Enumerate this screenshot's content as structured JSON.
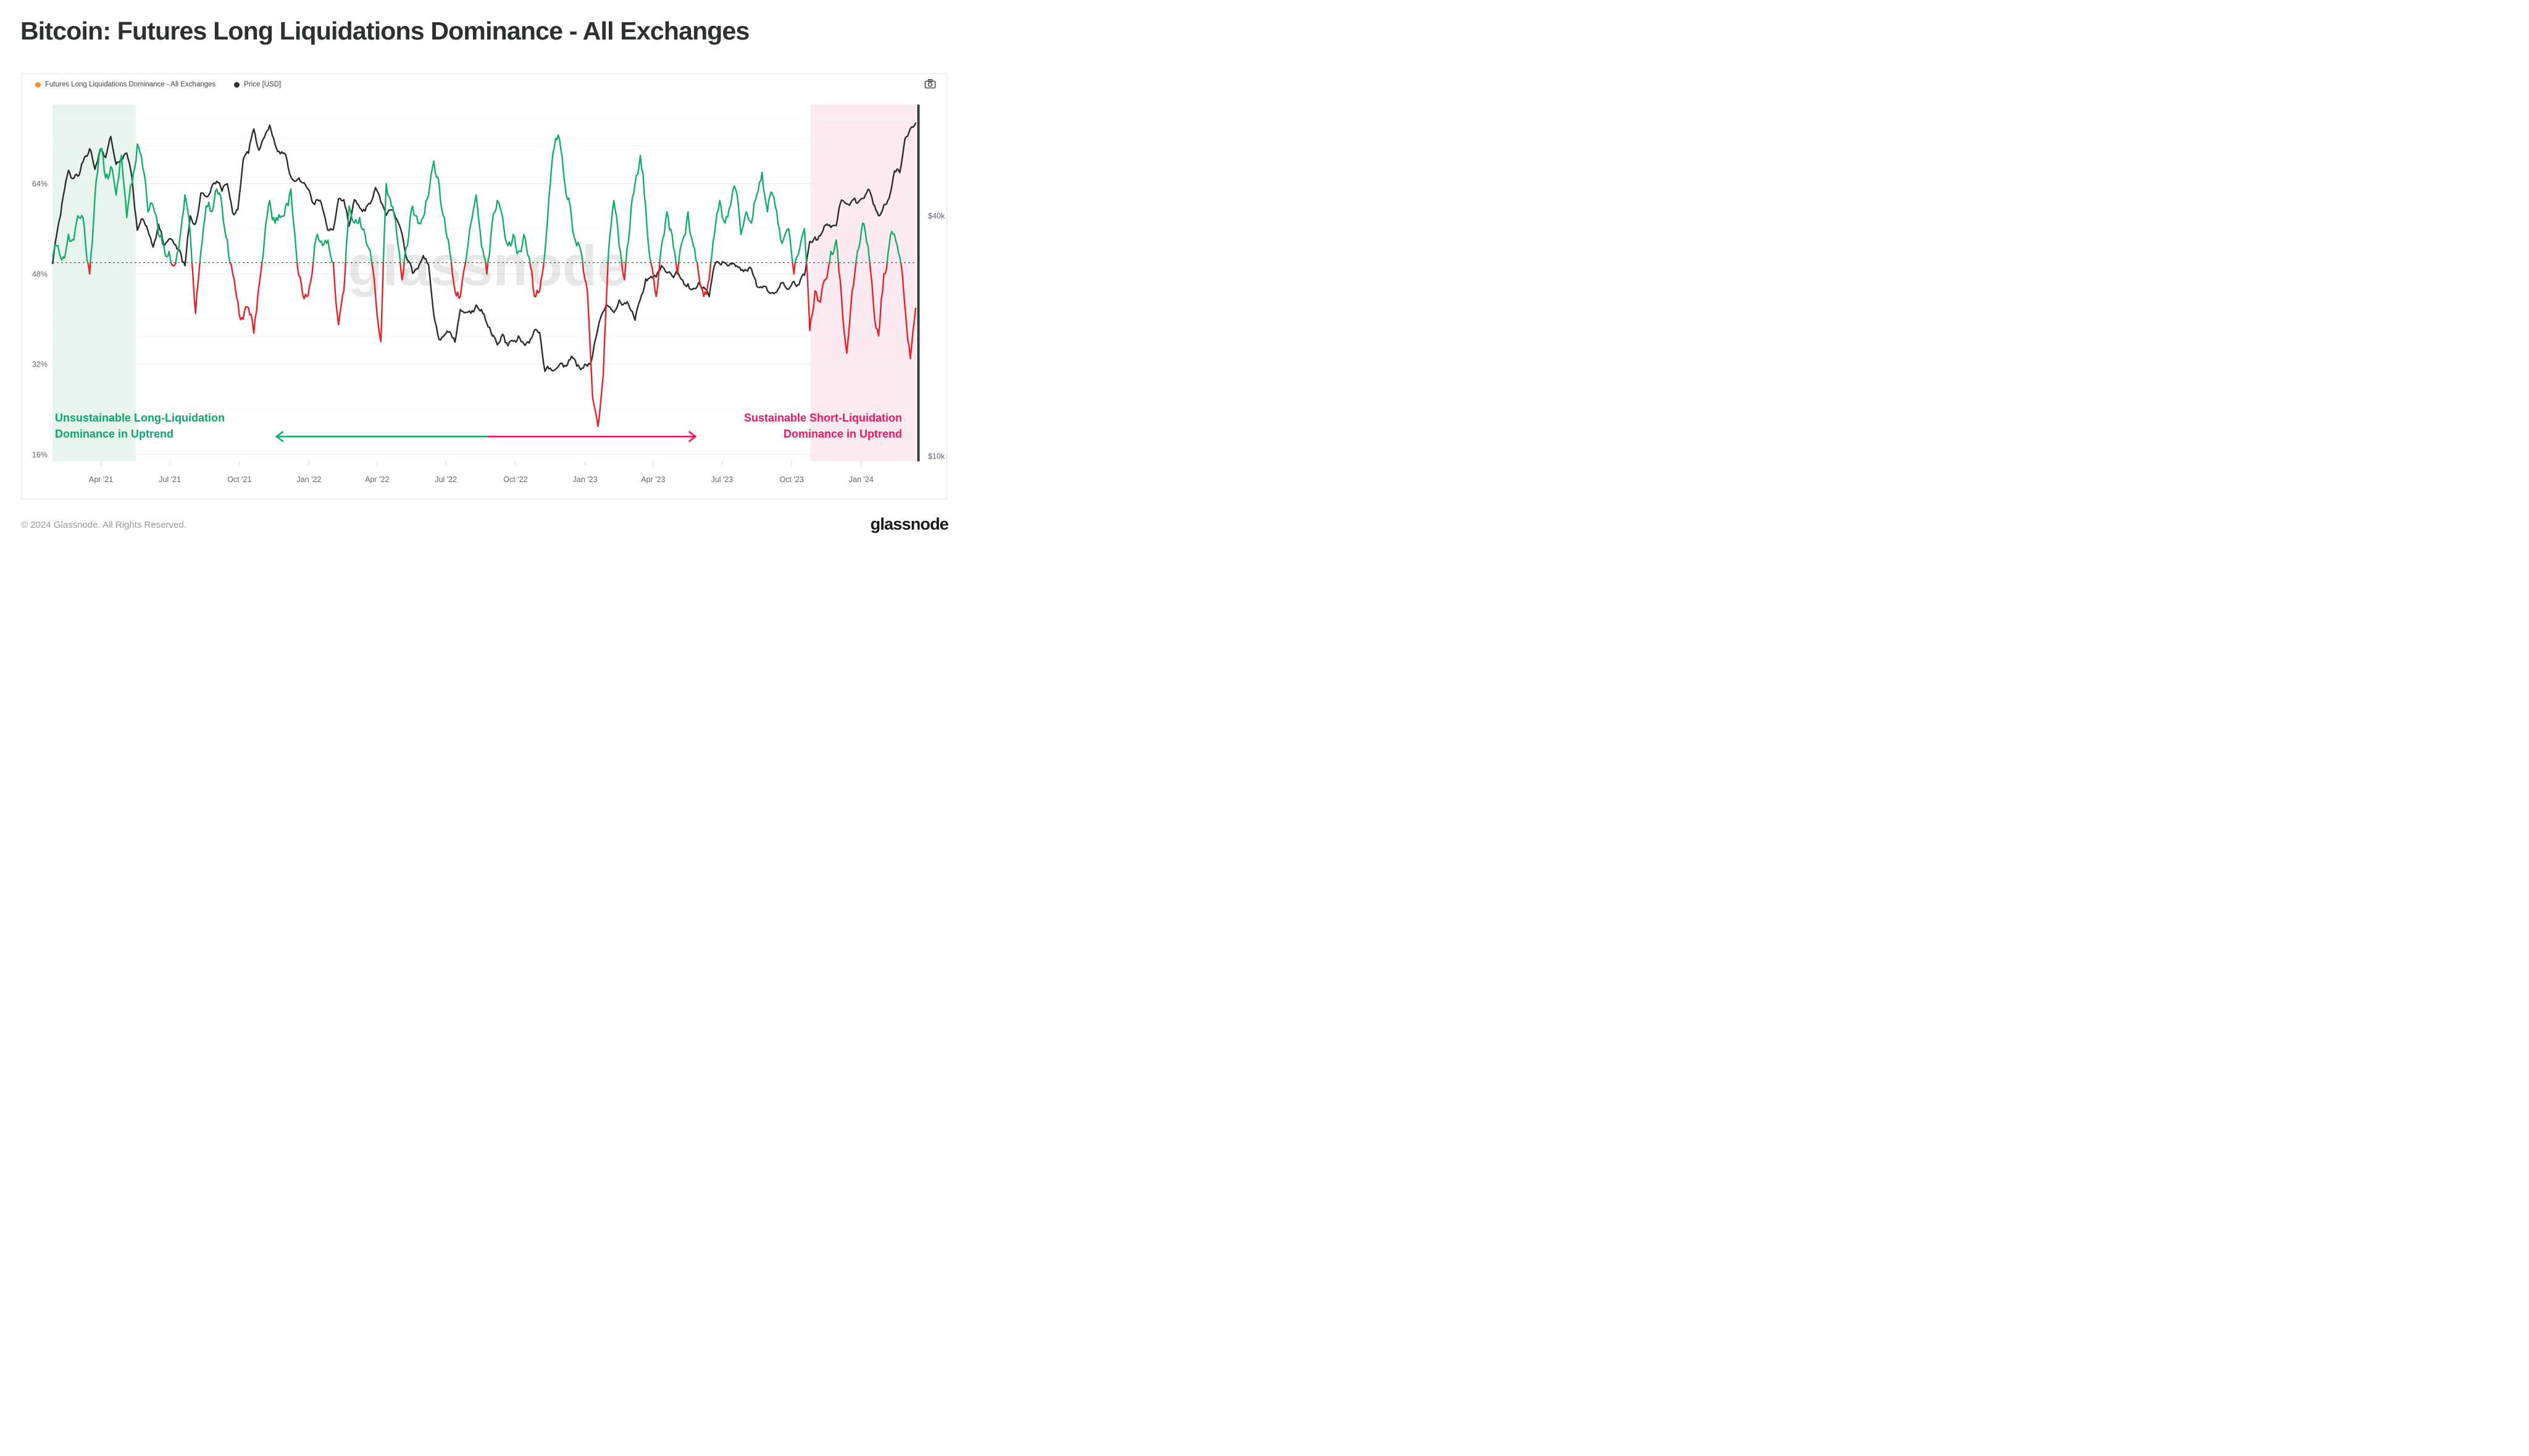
{
  "title": "Bitcoin: Futures Long Liquidations Dominance - All Exchanges",
  "chart": {
    "legend": [
      {
        "label": "Futures Long Liquidations Dominance - All Exchanges",
        "dot_color": "#f7931a"
      },
      {
        "label": "Price [USD]",
        "dot_color": "#333333"
      }
    ],
    "camera_icon": "camera-icon",
    "annotations": {
      "left": {
        "text": "Unsustainable Long-Liquidation\nDominance in Uptrend",
        "color": "#0ea46a"
      },
      "right": {
        "text": "Sustainable Short-Liquidation\nDominance in Uptrend",
        "color": "#ee1660"
      }
    }
  },
  "footer": {
    "copyright": "© 2024 Glassnode. All Rights Reserved.",
    "logo_text": "glassnode"
  },
  "chart_data": {
    "type": "line",
    "title": "Bitcoin: Futures Long Liquidations Dominance - All Exchanges",
    "x": {
      "start_date": "2021-01-27",
      "end_date": "2024-03-08",
      "total_days": 1141,
      "interval_days": 7,
      "ticks": [
        {
          "label": "Apr '21",
          "day": 64
        },
        {
          "label": "Jul '21",
          "day": 155
        },
        {
          "label": "Oct '21",
          "day": 247
        },
        {
          "label": "Jan '22",
          "day": 339
        },
        {
          "label": "Apr '22",
          "day": 429
        },
        {
          "label": "Jul '22",
          "day": 520
        },
        {
          "label": "Oct '22",
          "day": 612
        },
        {
          "label": "Jan '23",
          "day": 704
        },
        {
          "label": "Apr '23",
          "day": 794
        },
        {
          "label": "Jul '23",
          "day": 885
        },
        {
          "label": "Oct '23",
          "day": 977
        },
        {
          "label": "Jan '24",
          "day": 1069
        }
      ]
    },
    "y_left": {
      "unit": "%",
      "range": [
        14.8,
        78
      ],
      "ticks": [
        {
          "label": "16%",
          "pct": 16
        },
        {
          "label": "32%",
          "pct": 32
        },
        {
          "label": "48%",
          "pct": 48
        },
        {
          "label": "64%",
          "pct": 64
        }
      ],
      "minor_gridlines_pct": [
        24,
        40,
        56,
        72
      ]
    },
    "y_right": {
      "unit": "USD",
      "scale": "log",
      "range_usd_k": [
        9.7,
        76
      ],
      "ticks": [
        {
          "label": "$40k",
          "usd_k": 40
        },
        {
          "label": "$10k",
          "usd_k": 10
        }
      ],
      "gridlines_usd_k": [
        20,
        30,
        50,
        60,
        70
      ]
    },
    "series": [
      {
        "name": "Futures Long Liquidations Dominance - All Exchanges",
        "unit": "%",
        "threshold_pct": 50,
        "color_above": "#14ad6b",
        "color_below": "#e82127",
        "values": [
          51,
          53,
          51,
          55,
          54,
          58,
          56,
          48,
          62,
          70,
          65,
          67,
          62,
          69,
          58,
          64,
          71,
          67,
          59,
          60,
          55,
          53,
          52,
          49.5,
          54,
          62,
          55,
          41,
          52,
          60,
          59,
          63,
          60,
          54,
          48,
          43,
          40,
          42,
          37.5,
          46,
          54,
          61,
          57,
          58,
          60,
          63,
          52,
          46,
          44,
          48,
          55,
          53,
          54,
          50,
          39,
          45,
          60,
          57,
          58,
          55,
          52,
          44,
          36,
          64,
          60,
          55,
          47,
          53,
          60,
          57,
          58,
          62,
          68,
          64,
          58,
          52,
          45,
          44,
          50,
          57,
          62,
          53,
          48,
          57,
          61,
          58,
          53,
          55,
          52,
          55,
          51,
          44,
          45,
          52,
          64,
          72,
          70,
          62,
          58,
          53,
          51,
          45,
          26,
          21,
          30,
          52,
          61,
          53,
          47,
          56,
          64,
          69,
          60,
          50,
          44,
          53,
          59,
          55,
          48,
          54,
          59,
          53,
          48,
          44,
          47,
          55,
          61,
          57,
          60,
          63,
          55,
          59,
          57,
          62,
          66,
          59,
          62,
          57,
          54,
          56,
          48,
          52,
          56,
          38,
          45,
          43,
          47,
          52,
          54,
          44,
          34,
          45,
          52,
          57,
          53,
          43,
          37,
          48,
          53,
          55,
          51,
          42,
          33,
          42
        ]
      },
      {
        "name": "Price [USD]",
        "unit": "USD (thousands)",
        "color": "#2d2d2d",
        "values_usd_k": [
          30.4,
          37.5,
          44.8,
          52,
          49.7,
          50.5,
          56,
          58.9,
          52.3,
          58.8,
          56,
          63.2,
          53.8,
          54.9,
          57.4,
          49.7,
          36.8,
          39.3,
          36.7,
          33.4,
          38.1,
          33.7,
          35,
          33.9,
          32.8,
          30,
          40,
          38.2,
          45.6,
          44.7,
          47.1,
          48.8,
          46.1,
          48.1,
          40.7,
          41.5,
          55.3,
          57.4,
          66,
          58.4,
          62.9,
          67.5,
          60.4,
          57.2,
          57,
          50.1,
          48.9,
          48.6,
          47.1,
          43.4,
          43.9,
          41.7,
          36.8,
          36.9,
          44.1,
          43.9,
          37.7,
          43.9,
          41.9,
          41.1,
          42.9,
          47.1,
          43.2,
          40.1,
          41.4,
          39.2,
          36,
          31,
          28.7,
          29.5,
          31.8,
          30.2,
          22.6,
          19.6,
          20.1,
          20.5,
          19.3,
          23.3,
          22.9,
          22.8,
          23.9,
          23.3,
          21.5,
          20,
          19,
          20.2,
          18.9,
          19.4,
          20,
          19.1,
          19.2,
          20.7,
          20.4,
          16.3,
          16.6,
          16.5,
          17.1,
          16.8,
          17.8,
          16.8,
          16.6,
          16.8,
          17.9,
          20.9,
          23,
          23.7,
          22.9,
          24.6,
          24.2,
          23.5,
          21.9,
          24.7,
          27.8,
          28.2,
          28.1,
          30,
          28.8,
          28.3,
          29,
          27.6,
          27,
          26.3,
          27.2,
          26.5,
          25.1,
          30,
          30.3,
          30.5,
          30.4,
          29.9,
          29.2,
          29.2,
          29.4,
          26.6,
          26.4,
          26,
          25.7,
          26.2,
          27.2,
          26.2,
          27.4,
          26.9,
          28.4,
          34.5,
          35.4,
          35.7,
          37.9,
          37.4,
          37.8,
          43.8,
          42.9,
          43.7,
          43,
          44.2,
          46.6,
          42.8,
          40,
          42.6,
          44.3,
          51.8,
          51.3,
          62.5,
          66.1,
          68.3
        ]
      }
    ],
    "threshold_line": {
      "pct": 50,
      "style": "dotted",
      "color": "#3a3a3a"
    },
    "regions": [
      {
        "name": "unsustainable-long-liquidation-zone",
        "from_day": 0,
        "to_day": 110,
        "color": "#e7f5ee"
      },
      {
        "name": "sustainable-short-liquidation-zone",
        "from_day": 1002,
        "to_day": 1141,
        "color": "#fde9f0"
      }
    ],
    "arrow": {
      "from_day": 296,
      "mid_day": 575,
      "to_day": 850,
      "y_pct": 19.2,
      "left_color": "#14ad6b",
      "right_color": "#ee1660"
    },
    "watermark": {
      "text": "glassnode",
      "x_day": 576,
      "y_pct": 49.5,
      "color": "#000000",
      "opacity": 0.09
    },
    "right_axis_spine_color": "#3a3a3a",
    "legend_position": "top-left",
    "grid": true
  }
}
